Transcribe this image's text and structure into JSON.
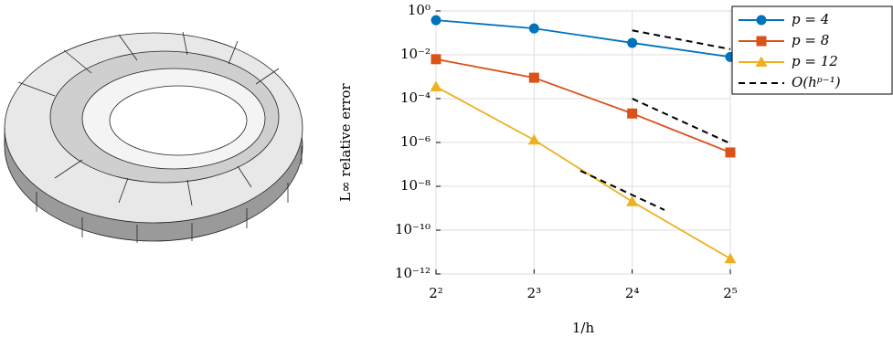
{
  "chart_data": {
    "type": "line",
    "xlabel": "1/h",
    "ylabel": "L∞ relative error",
    "xscale": "log2",
    "yscale": "log10",
    "grid": true,
    "legend": "outside-upper-right",
    "xlim": [
      4,
      32
    ],
    "xticks": [
      {
        "value": 4,
        "label": "2²"
      },
      {
        "value": 8,
        "label": "2³"
      },
      {
        "value": 16,
        "label": "2⁴"
      },
      {
        "value": 32,
        "label": "2⁵"
      }
    ],
    "ylim": [
      1e-12,
      1
    ],
    "yticks": [
      {
        "value": 1,
        "label": "10⁰"
      },
      {
        "value": 0.01,
        "label": "10⁻²"
      },
      {
        "value": 0.0001,
        "label": "10⁻⁴"
      },
      {
        "value": 1e-06,
        "label": "10⁻⁶"
      },
      {
        "value": 1e-08,
        "label": "10⁻⁸"
      },
      {
        "value": 1e-10,
        "label": "10⁻¹⁰"
      },
      {
        "value": 1e-12,
        "label": "10⁻¹²"
      }
    ],
    "series": [
      {
        "name": "p = 4",
        "color": "#0072BD",
        "marker": "circle",
        "x": [
          4,
          8,
          16,
          32
        ],
        "values": [
          0.38,
          0.16,
          0.035,
          0.008
        ]
      },
      {
        "name": "p = 8",
        "color": "#D95319",
        "marker": "square",
        "x": [
          4,
          8,
          16,
          32
        ],
        "values": [
          0.0063,
          0.0009,
          2.1e-05,
          3.5e-07
        ]
      },
      {
        "name": "p = 12",
        "color": "#EDB120",
        "marker": "triangle",
        "x": [
          4,
          8,
          16,
          32
        ],
        "values": [
          0.00035,
          1.3e-06,
          2e-09,
          5e-12
        ]
      },
      {
        "name": "O(hᵖ⁻¹)",
        "color": "#000000",
        "marker": "none",
        "dash": true,
        "x": [
          16,
          32,
          null,
          16,
          32,
          null,
          11.1,
          20.1
        ],
        "values": [
          0.13,
          0.018,
          null,
          0.0001,
          9e-07,
          null,
          5.1e-08,
          8.3e-10
        ]
      }
    ]
  }
}
